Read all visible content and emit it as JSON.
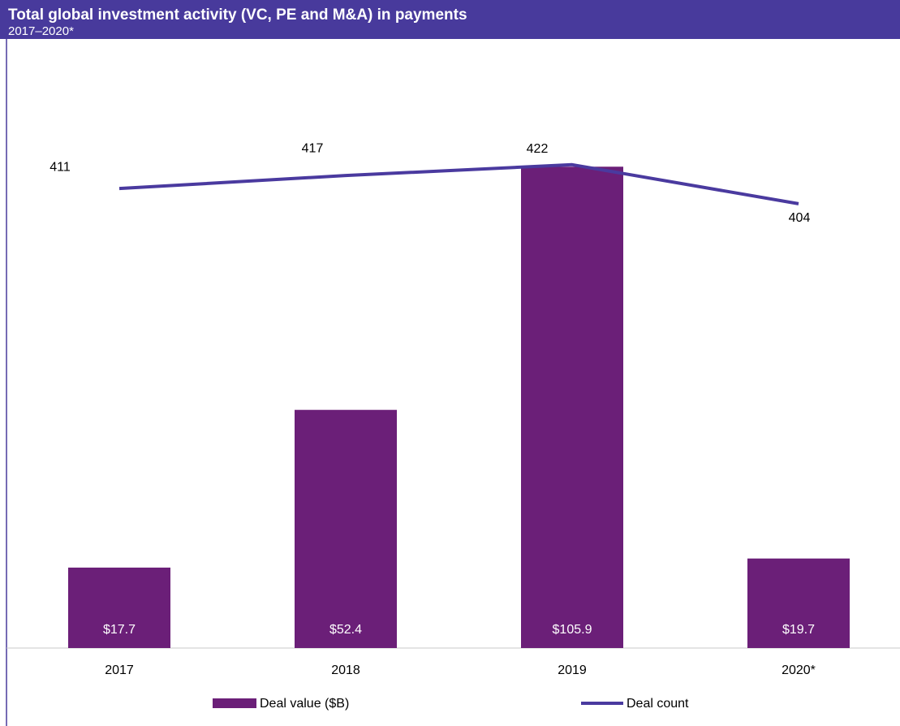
{
  "chart_data": {
    "type": "bar-line",
    "title": "Total global investment activity (VC, PE and M&A) in payments",
    "subtitle": "2017–2020*",
    "categories": [
      "2017",
      "2018",
      "2019",
      "2020*"
    ],
    "series": [
      {
        "name": "Deal value ($B)",
        "type": "bar",
        "color": "#6b1f78",
        "values": [
          17.7,
          52.4,
          105.9,
          19.7
        ],
        "value_labels": [
          "$17.7",
          "$52.4",
          "$105.9",
          "$19.7"
        ]
      },
      {
        "name": "Deal count",
        "type": "line",
        "axis": "y2",
        "color": "#4a3a9f",
        "values": [
          411,
          417,
          422,
          404
        ]
      }
    ],
    "ylim": [
      0,
      134
    ],
    "y2lim": [
      199,
      480
    ],
    "grid": false
  }
}
